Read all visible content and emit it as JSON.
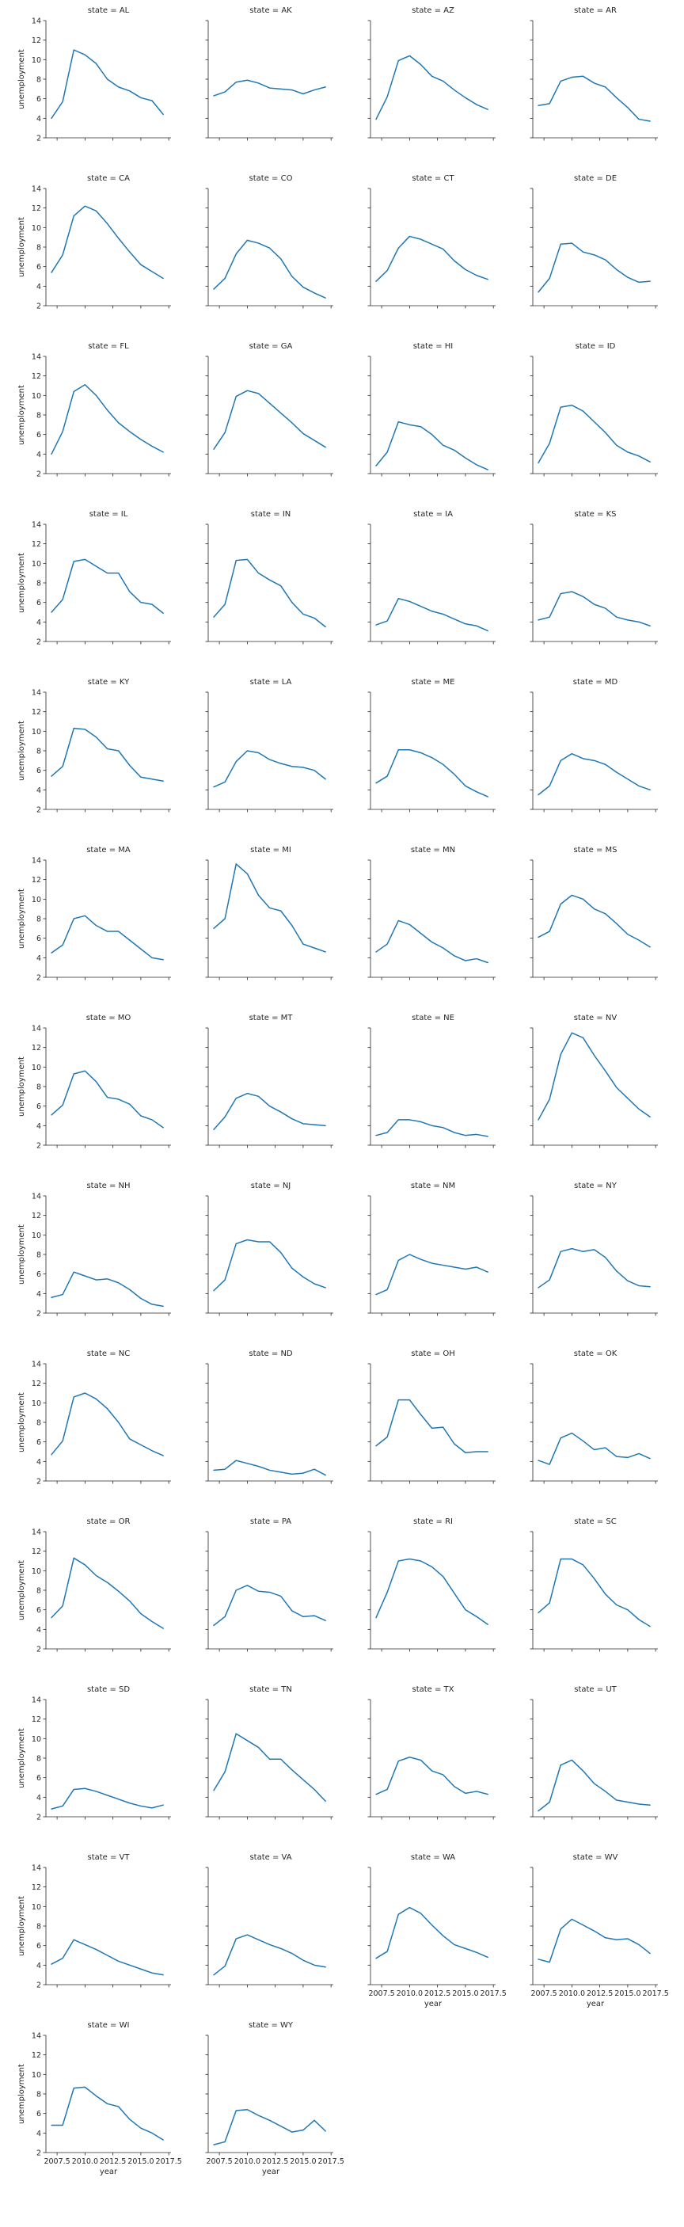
{
  "chart_data": {
    "type": "line",
    "layout": "facet-grid",
    "columns": 4,
    "facet_variable": "state",
    "facet_title_template": "state = {state}",
    "xlabel": "year",
    "ylabel": "unemployment",
    "xlim": [
      2006.5,
      2017.7
    ],
    "ylim": [
      2,
      14
    ],
    "xticks": [
      2007.5,
      2010.0,
      2012.5,
      2015.0,
      2017.5
    ],
    "xtick_labels": [
      "2007.5",
      "2010.0",
      "2012.5",
      "2015.0",
      "2017.5"
    ],
    "yticks": [
      2,
      4,
      6,
      8,
      10,
      12,
      14
    ],
    "ytick_labels": [
      "2",
      "4",
      "6",
      "8",
      "10",
      "12",
      "14"
    ],
    "line_color": "#1f77b4",
    "grid": false,
    "legend": "none",
    "x": [
      2007,
      2008,
      2009,
      2010,
      2011,
      2012,
      2013,
      2014,
      2015,
      2016,
      2017
    ],
    "facets": [
      {
        "state": "AL",
        "values": [
          4.0,
          5.7,
          11.0,
          10.5,
          9.6,
          8.0,
          7.2,
          6.8,
          6.1,
          5.8,
          4.4
        ]
      },
      {
        "state": "AK",
        "values": [
          6.3,
          6.7,
          7.7,
          7.9,
          7.6,
          7.1,
          7.0,
          6.9,
          6.5,
          6.9,
          7.2
        ]
      },
      {
        "state": "AZ",
        "values": [
          3.9,
          6.2,
          9.9,
          10.4,
          9.5,
          8.3,
          7.8,
          6.9,
          6.1,
          5.4,
          4.9
        ]
      },
      {
        "state": "AR",
        "values": [
          5.3,
          5.5,
          7.8,
          8.2,
          8.3,
          7.6,
          7.2,
          6.1,
          5.1,
          3.9,
          3.7
        ]
      },
      {
        "state": "CA",
        "values": [
          5.4,
          7.2,
          11.2,
          12.2,
          11.7,
          10.4,
          8.9,
          7.5,
          6.2,
          5.5,
          4.8
        ]
      },
      {
        "state": "CO",
        "values": [
          3.7,
          4.8,
          7.3,
          8.7,
          8.4,
          7.9,
          6.8,
          5.0,
          3.9,
          3.3,
          2.8
        ]
      },
      {
        "state": "CT",
        "values": [
          4.5,
          5.6,
          7.9,
          9.1,
          8.8,
          8.3,
          7.8,
          6.6,
          5.7,
          5.1,
          4.7
        ]
      },
      {
        "state": "DE",
        "values": [
          3.4,
          4.8,
          8.3,
          8.4,
          7.5,
          7.2,
          6.7,
          5.7,
          4.9,
          4.4,
          4.5
        ]
      },
      {
        "state": "FL",
        "values": [
          4.0,
          6.3,
          10.4,
          11.1,
          10.0,
          8.5,
          7.2,
          6.3,
          5.5,
          4.8,
          4.2
        ]
      },
      {
        "state": "GA",
        "values": [
          4.5,
          6.2,
          9.9,
          10.5,
          10.2,
          9.2,
          8.2,
          7.2,
          6.1,
          5.4,
          4.7
        ]
      },
      {
        "state": "HI",
        "values": [
          2.8,
          4.2,
          7.3,
          7.0,
          6.8,
          6.0,
          4.9,
          4.4,
          3.6,
          2.9,
          2.4
        ]
      },
      {
        "state": "ID",
        "values": [
          3.1,
          5.1,
          8.8,
          9.0,
          8.4,
          7.3,
          6.2,
          4.9,
          4.2,
          3.8,
          3.2
        ]
      },
      {
        "state": "IL",
        "values": [
          5.0,
          6.3,
          10.2,
          10.4,
          9.7,
          9.0,
          9.0,
          7.1,
          6.0,
          5.8,
          4.9
        ]
      },
      {
        "state": "IN",
        "values": [
          4.5,
          5.8,
          10.3,
          10.4,
          9.0,
          8.3,
          7.7,
          6.0,
          4.8,
          4.4,
          3.5
        ]
      },
      {
        "state": "IA",
        "values": [
          3.7,
          4.1,
          6.4,
          6.1,
          5.6,
          5.1,
          4.8,
          4.3,
          3.8,
          3.6,
          3.1
        ]
      },
      {
        "state": "KS",
        "values": [
          4.2,
          4.5,
          6.9,
          7.1,
          6.6,
          5.8,
          5.4,
          4.5,
          4.2,
          4.0,
          3.6
        ]
      },
      {
        "state": "KY",
        "values": [
          5.4,
          6.4,
          10.3,
          10.2,
          9.4,
          8.2,
          8.0,
          6.5,
          5.3,
          5.1,
          4.9
        ]
      },
      {
        "state": "LA",
        "values": [
          4.3,
          4.8,
          6.9,
          8.0,
          7.8,
          7.1,
          6.7,
          6.4,
          6.3,
          6.0,
          5.1
        ]
      },
      {
        "state": "ME",
        "values": [
          4.7,
          5.4,
          8.1,
          8.1,
          7.8,
          7.3,
          6.6,
          5.6,
          4.4,
          3.8,
          3.3
        ]
      },
      {
        "state": "MD",
        "values": [
          3.5,
          4.4,
          7.0,
          7.7,
          7.2,
          7.0,
          6.6,
          5.8,
          5.1,
          4.4,
          4.0
        ]
      },
      {
        "state": "MA",
        "values": [
          4.5,
          5.3,
          8.0,
          8.3,
          7.3,
          6.7,
          6.7,
          5.8,
          4.9,
          4.0,
          3.8
        ]
      },
      {
        "state": "MI",
        "values": [
          7.0,
          8.0,
          13.6,
          12.6,
          10.4,
          9.1,
          8.8,
          7.3,
          5.4,
          5.0,
          4.6
        ]
      },
      {
        "state": "MN",
        "values": [
          4.6,
          5.4,
          7.8,
          7.4,
          6.5,
          5.6,
          5.0,
          4.2,
          3.7,
          3.9,
          3.5
        ]
      },
      {
        "state": "MS",
        "values": [
          6.1,
          6.7,
          9.5,
          10.4,
          10.0,
          9.0,
          8.5,
          7.5,
          6.4,
          5.8,
          5.1
        ]
      },
      {
        "state": "MO",
        "values": [
          5.1,
          6.1,
          9.3,
          9.6,
          8.5,
          6.9,
          6.7,
          6.2,
          5.0,
          4.6,
          3.8
        ]
      },
      {
        "state": "MT",
        "values": [
          3.6,
          4.9,
          6.8,
          7.3,
          7.0,
          6.0,
          5.4,
          4.7,
          4.2,
          4.1,
          4.0
        ]
      },
      {
        "state": "NE",
        "values": [
          3.0,
          3.3,
          4.6,
          4.6,
          4.4,
          4.0,
          3.8,
          3.3,
          3.0,
          3.1,
          2.9
        ]
      },
      {
        "state": "NV",
        "values": [
          4.6,
          6.7,
          11.3,
          13.5,
          13.0,
          11.2,
          9.6,
          7.9,
          6.8,
          5.7,
          4.9
        ]
      },
      {
        "state": "NH",
        "values": [
          3.6,
          3.9,
          6.2,
          5.8,
          5.4,
          5.5,
          5.1,
          4.4,
          3.5,
          2.9,
          2.7
        ]
      },
      {
        "state": "NJ",
        "values": [
          4.3,
          5.4,
          9.1,
          9.5,
          9.3,
          9.3,
          8.2,
          6.6,
          5.7,
          5.0,
          4.6
        ]
      },
      {
        "state": "NM",
        "values": [
          3.9,
          4.4,
          7.4,
          8.0,
          7.5,
          7.1,
          6.9,
          6.7,
          6.5,
          6.7,
          6.2
        ]
      },
      {
        "state": "NY",
        "values": [
          4.6,
          5.4,
          8.3,
          8.6,
          8.3,
          8.5,
          7.7,
          6.3,
          5.3,
          4.8,
          4.7
        ]
      },
      {
        "state": "NC",
        "values": [
          4.7,
          6.1,
          10.6,
          11.0,
          10.4,
          9.4,
          8.0,
          6.3,
          5.7,
          5.1,
          4.6
        ]
      },
      {
        "state": "ND",
        "values": [
          3.1,
          3.2,
          4.1,
          3.8,
          3.5,
          3.1,
          2.9,
          2.7,
          2.8,
          3.2,
          2.6
        ]
      },
      {
        "state": "OH",
        "values": [
          5.6,
          6.5,
          10.3,
          10.3,
          8.8,
          7.4,
          7.5,
          5.8,
          4.9,
          5.0,
          5.0
        ]
      },
      {
        "state": "OK",
        "values": [
          4.1,
          3.7,
          6.4,
          6.9,
          6.1,
          5.2,
          5.4,
          4.5,
          4.4,
          4.8,
          4.3
        ]
      },
      {
        "state": "OR",
        "values": [
          5.2,
          6.4,
          11.3,
          10.6,
          9.5,
          8.8,
          7.9,
          6.9,
          5.6,
          4.8,
          4.1
        ]
      },
      {
        "state": "PA",
        "values": [
          4.4,
          5.3,
          8.0,
          8.5,
          7.9,
          7.8,
          7.4,
          5.9,
          5.3,
          5.4,
          4.9
        ]
      },
      {
        "state": "RI",
        "values": [
          5.2,
          7.8,
          11.0,
          11.2,
          11.0,
          10.4,
          9.4,
          7.7,
          6.0,
          5.3,
          4.5
        ]
      },
      {
        "state": "SC",
        "values": [
          5.7,
          6.7,
          11.2,
          11.2,
          10.6,
          9.2,
          7.6,
          6.5,
          6.0,
          5.0,
          4.3
        ]
      },
      {
        "state": "SD",
        "values": [
          2.8,
          3.1,
          4.8,
          4.9,
          4.6,
          4.2,
          3.8,
          3.4,
          3.1,
          2.9,
          3.2
        ]
      },
      {
        "state": "TN",
        "values": [
          4.7,
          6.6,
          10.5,
          9.8,
          9.1,
          7.9,
          7.9,
          6.8,
          5.8,
          4.8,
          3.6
        ]
      },
      {
        "state": "TX",
        "values": [
          4.3,
          4.8,
          7.7,
          8.1,
          7.8,
          6.7,
          6.3,
          5.1,
          4.4,
          4.6,
          4.3
        ]
      },
      {
        "state": "UT",
        "values": [
          2.6,
          3.5,
          7.3,
          7.8,
          6.7,
          5.4,
          4.6,
          3.7,
          3.5,
          3.3,
          3.2
        ]
      },
      {
        "state": "VT",
        "values": [
          4.1,
          4.7,
          6.6,
          6.1,
          5.6,
          5.0,
          4.4,
          4.0,
          3.6,
          3.2,
          3.0
        ]
      },
      {
        "state": "VA",
        "values": [
          3.0,
          3.9,
          6.7,
          7.1,
          6.6,
          6.1,
          5.7,
          5.2,
          4.5,
          4.0,
          3.8
        ]
      },
      {
        "state": "WA",
        "values": [
          4.7,
          5.4,
          9.2,
          9.9,
          9.3,
          8.1,
          7.0,
          6.1,
          5.7,
          5.3,
          4.8
        ]
      },
      {
        "state": "WV",
        "values": [
          4.6,
          4.3,
          7.7,
          8.7,
          8.1,
          7.5,
          6.8,
          6.6,
          6.7,
          6.1,
          5.2
        ]
      },
      {
        "state": "WI",
        "values": [
          4.8,
          4.8,
          8.6,
          8.7,
          7.8,
          7.0,
          6.7,
          5.4,
          4.5,
          4.0,
          3.3
        ]
      },
      {
        "state": "WY",
        "values": [
          2.8,
          3.1,
          6.3,
          6.4,
          5.8,
          5.3,
          4.7,
          4.1,
          4.3,
          5.3,
          4.2
        ]
      }
    ]
  }
}
